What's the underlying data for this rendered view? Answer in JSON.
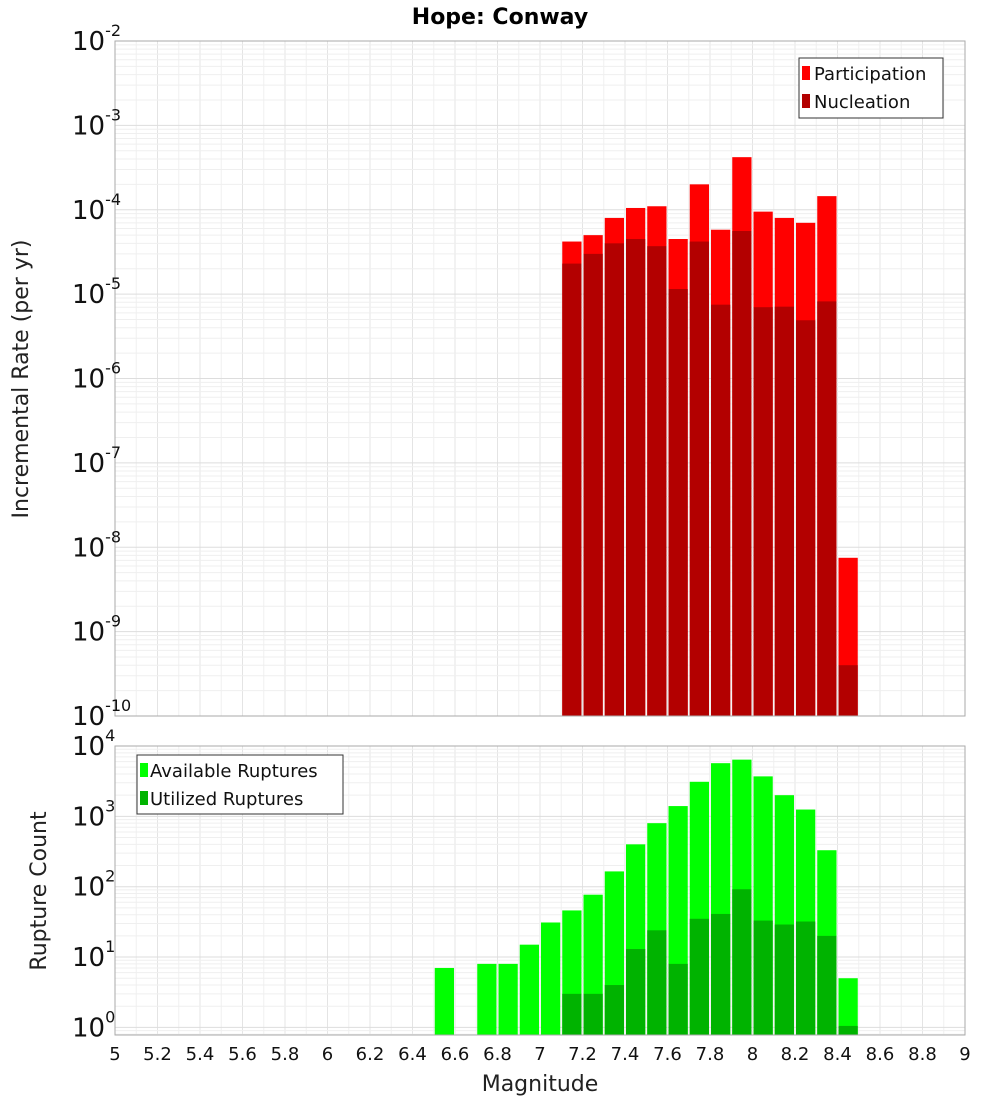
{
  "chart_data": [
    {
      "type": "bar",
      "title": "Hope: Conway",
      "xlabel": "",
      "ylabel": "Incremental Rate (per yr)",
      "yscale": "log",
      "ylim": [
        1e-10,
        0.01
      ],
      "xlim": [
        5,
        9
      ],
      "yticks": [
        {
          "base": "10",
          "exp": "-10",
          "value": 1e-10
        },
        {
          "base": "10",
          "exp": "-9",
          "value": 1e-09
        },
        {
          "base": "10",
          "exp": "-8",
          "value": 1e-08
        },
        {
          "base": "10",
          "exp": "-7",
          "value": 1e-07
        },
        {
          "base": "10",
          "exp": "-6",
          "value": 1e-06
        },
        {
          "base": "10",
          "exp": "-5",
          "value": 1e-05
        },
        {
          "base": "10",
          "exp": "-4",
          "value": 0.0001
        },
        {
          "base": "10",
          "exp": "-3",
          "value": 0.001
        },
        {
          "base": "10",
          "exp": "-2",
          "value": 0.01
        }
      ],
      "grid": true,
      "legend_position": "top-right",
      "x": [
        7.15,
        7.25,
        7.35,
        7.45,
        7.55,
        7.65,
        7.75,
        7.85,
        7.95,
        8.05,
        8.15,
        8.25,
        8.35,
        8.45
      ],
      "series": [
        {
          "name": "Participation",
          "color": "#ff0000",
          "values": [
            4.2e-05,
            5e-05,
            8e-05,
            0.000105,
            0.00011,
            4.5e-05,
            0.0002,
            5.8e-05,
            0.00042,
            9.5e-05,
            8e-05,
            7e-05,
            0.000145,
            7.5e-09
          ]
        },
        {
          "name": "Nucleation",
          "color": "#b30000",
          "values": [
            2.3e-05,
            3e-05,
            4e-05,
            4.5e-05,
            3.7e-05,
            1.15e-05,
            4.2e-05,
            7.5e-06,
            5.6e-05,
            7e-06,
            7.1e-06,
            4.9e-06,
            8.2e-06,
            4e-10
          ]
        }
      ]
    },
    {
      "type": "bar",
      "title": "",
      "xlabel": "Magnitude",
      "ylabel": "Rupture Count",
      "yscale": "log",
      "ylim": [
        0.78,
        10000
      ],
      "xlim": [
        5,
        9
      ],
      "xticks": [
        "5",
        "5.2",
        "5.4",
        "5.6",
        "5.8",
        "6",
        "6.2",
        "6.4",
        "6.6",
        "6.8",
        "7",
        "7.2",
        "7.4",
        "7.6",
        "7.8",
        "8",
        "8.2",
        "8.4",
        "8.6",
        "8.8",
        "9"
      ],
      "yticks": [
        {
          "base": "10",
          "exp": "0",
          "value": 1
        },
        {
          "base": "10",
          "exp": "1",
          "value": 10
        },
        {
          "base": "10",
          "exp": "2",
          "value": 100
        },
        {
          "base": "10",
          "exp": "3",
          "value": 1000
        },
        {
          "base": "10",
          "exp": "4",
          "value": 10000
        }
      ],
      "grid": true,
      "legend_position": "top-left",
      "x": [
        6.55,
        6.75,
        6.85,
        6.95,
        7.05,
        7.15,
        7.25,
        7.35,
        7.45,
        7.55,
        7.65,
        7.75,
        7.85,
        7.95,
        8.05,
        8.15,
        8.25,
        8.35,
        8.45
      ],
      "series": [
        {
          "name": "Available Ruptures",
          "color": "#00ff00",
          "values": [
            7,
            8,
            8,
            15,
            31,
            46,
            77,
            165,
            400,
            800,
            1400,
            3100,
            5700,
            6400,
            3700,
            2000,
            1250,
            330,
            5
          ]
        },
        {
          "name": "Utilized Ruptures",
          "color": "#00b300",
          "values": [
            0,
            0,
            0,
            0,
            0,
            3,
            3,
            4,
            13,
            24,
            8,
            35,
            41,
            92,
            33,
            29,
            32,
            20,
            1.05
          ]
        }
      ]
    }
  ]
}
